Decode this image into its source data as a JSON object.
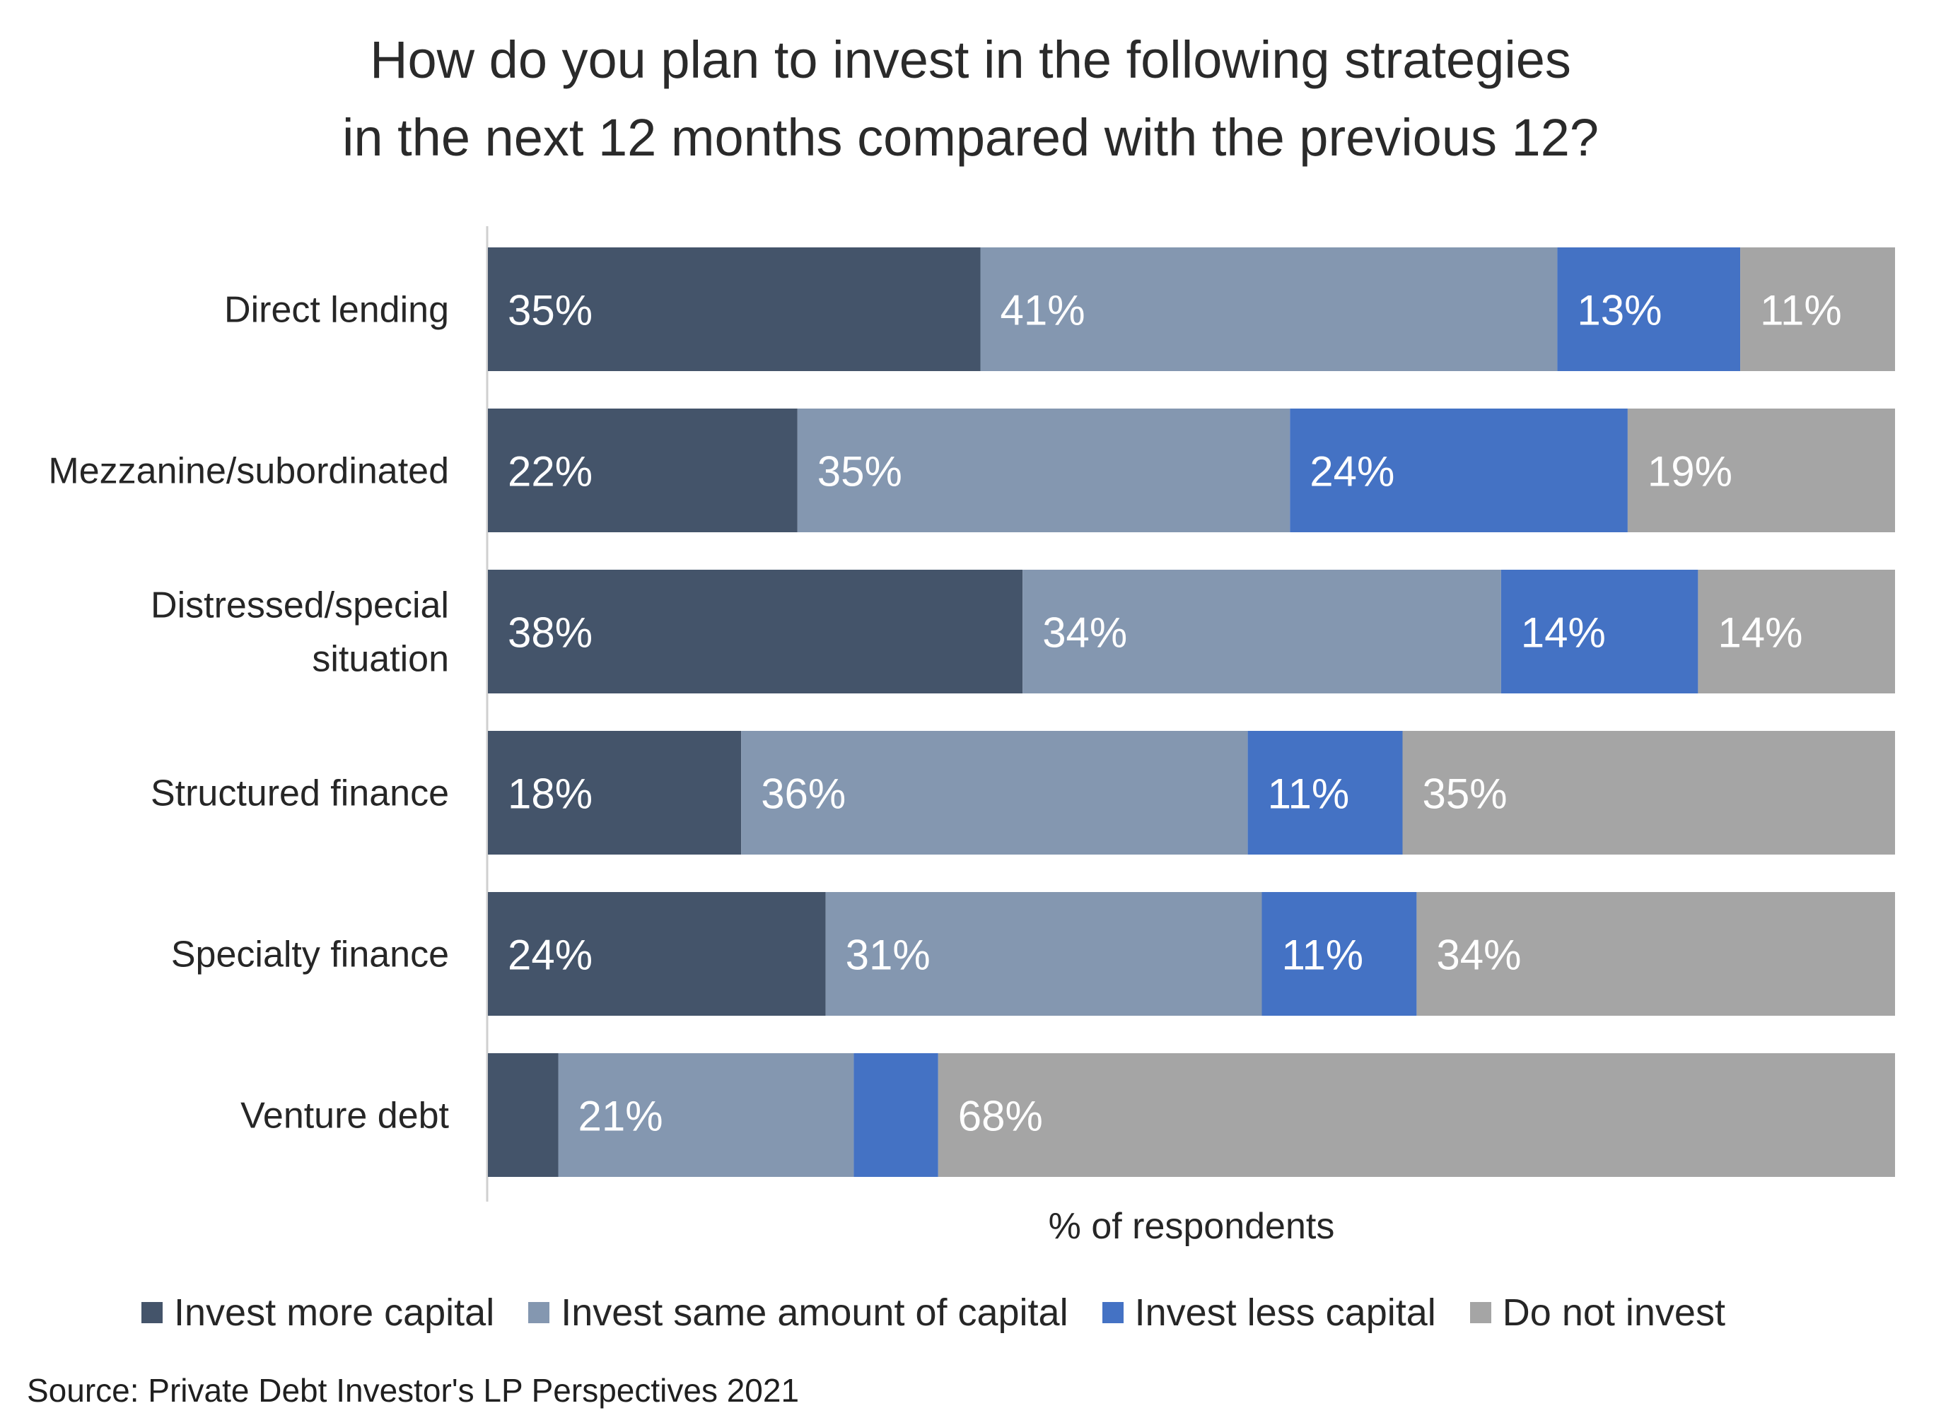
{
  "chart_data": {
    "type": "bar",
    "orientation": "horizontal",
    "stacked": true,
    "title_lines": [
      "How do you plan to invest in the following strategies",
      "in the next 12 months compared with the previous 12?"
    ],
    "xlabel": "% of respondents",
    "ylabel": "",
    "xlim": [
      0,
      100
    ],
    "grid": false,
    "legend_position": "bottom",
    "categories": [
      [
        "Direct lending"
      ],
      [
        "Mezzanine/subordinated"
      ],
      [
        "Distressed/special",
        "situation"
      ],
      [
        "Structured finance"
      ],
      [
        "Specialty finance"
      ],
      [
        "Venture debt"
      ]
    ],
    "series": [
      {
        "name": "Invest more capital",
        "color": "#44546A",
        "values": [
          35,
          22,
          38,
          18,
          24,
          5
        ],
        "labels": [
          "35%",
          "22%",
          "38%",
          "18%",
          "24%",
          ""
        ]
      },
      {
        "name": "Invest same amount of capital",
        "color": "#8497B0",
        "values": [
          41,
          35,
          34,
          36,
          31,
          21
        ],
        "labels": [
          "41%",
          "35%",
          "34%",
          "36%",
          "31%",
          "21%"
        ]
      },
      {
        "name": "Invest less capital",
        "color": "#4472C4",
        "values": [
          13,
          24,
          14,
          11,
          11,
          6
        ],
        "labels": [
          "13%",
          "24%",
          "14%",
          "11%",
          "11%",
          ""
        ]
      },
      {
        "name": "Do not invest",
        "color": "#A5A5A5",
        "values": [
          11,
          19,
          14,
          35,
          34,
          68
        ],
        "labels": [
          "11%",
          "19%",
          "14%",
          "35%",
          "34%",
          "68%"
        ]
      }
    ]
  },
  "source": "Source: Private Debt Investor's LP Perspectives 2021"
}
